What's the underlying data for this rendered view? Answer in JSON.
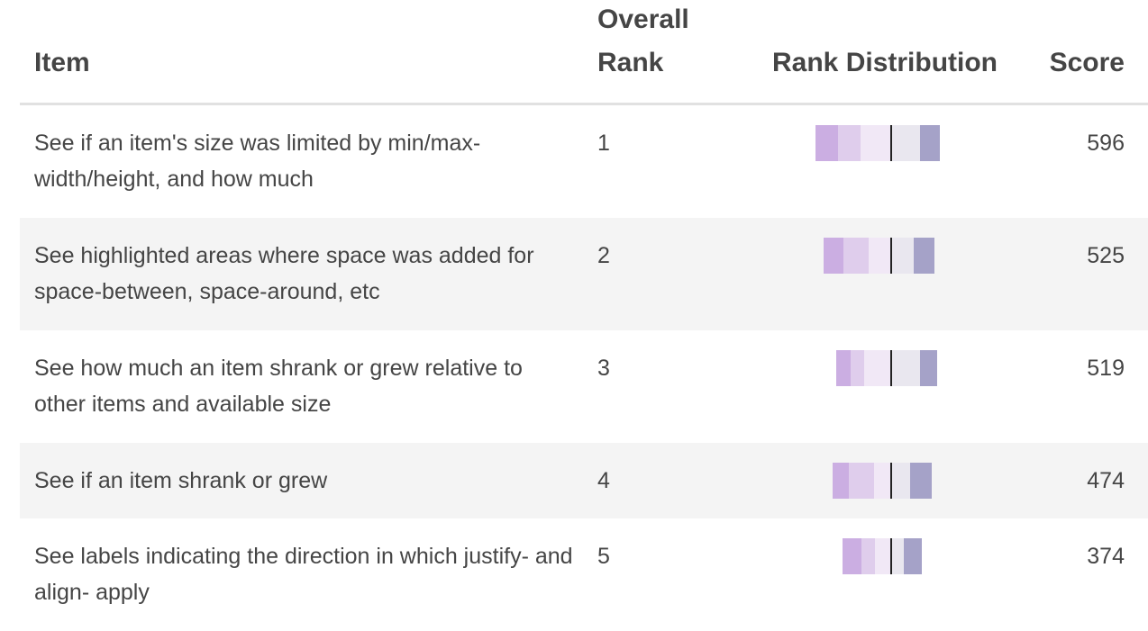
{
  "header": {
    "item": "Item",
    "rank": "Overall\nRank",
    "distribution": "Rank Distribution",
    "score": "Score"
  },
  "colors": {
    "rank_segments": [
      "#cbaee2",
      "#dfcdec",
      "#f1e8f6",
      "#e9e7ef",
      "#a5a2c8"
    ],
    "midline": "#222222",
    "row_alt": "#f4f4f4",
    "header_rule": "#e1e1e1"
  },
  "rows": [
    {
      "item": "See if an item's size was limited by min/max-width/height, and how much",
      "rank": "1",
      "score": "596",
      "distribution": [
        25,
        25,
        33,
        33,
        22
      ]
    },
    {
      "item": "See highlighted areas where space was added for space-between, space-around, etc",
      "rank": "2",
      "score": "525",
      "distribution": [
        22,
        28,
        24,
        26,
        23
      ]
    },
    {
      "item": "See how much an item shrank or grew relative to other items and available size",
      "rank": "3",
      "score": "519",
      "distribution": [
        16,
        15,
        29,
        33,
        19
      ]
    },
    {
      "item": "See if an item shrank or grew",
      "rank": "4",
      "score": "474",
      "distribution": [
        18,
        28,
        18,
        22,
        24
      ]
    },
    {
      "item": "See labels indicating the direction in which justify- and align- apply",
      "rank": "5",
      "score": "374",
      "distribution": [
        21,
        15,
        17,
        15,
        20
      ]
    }
  ]
}
